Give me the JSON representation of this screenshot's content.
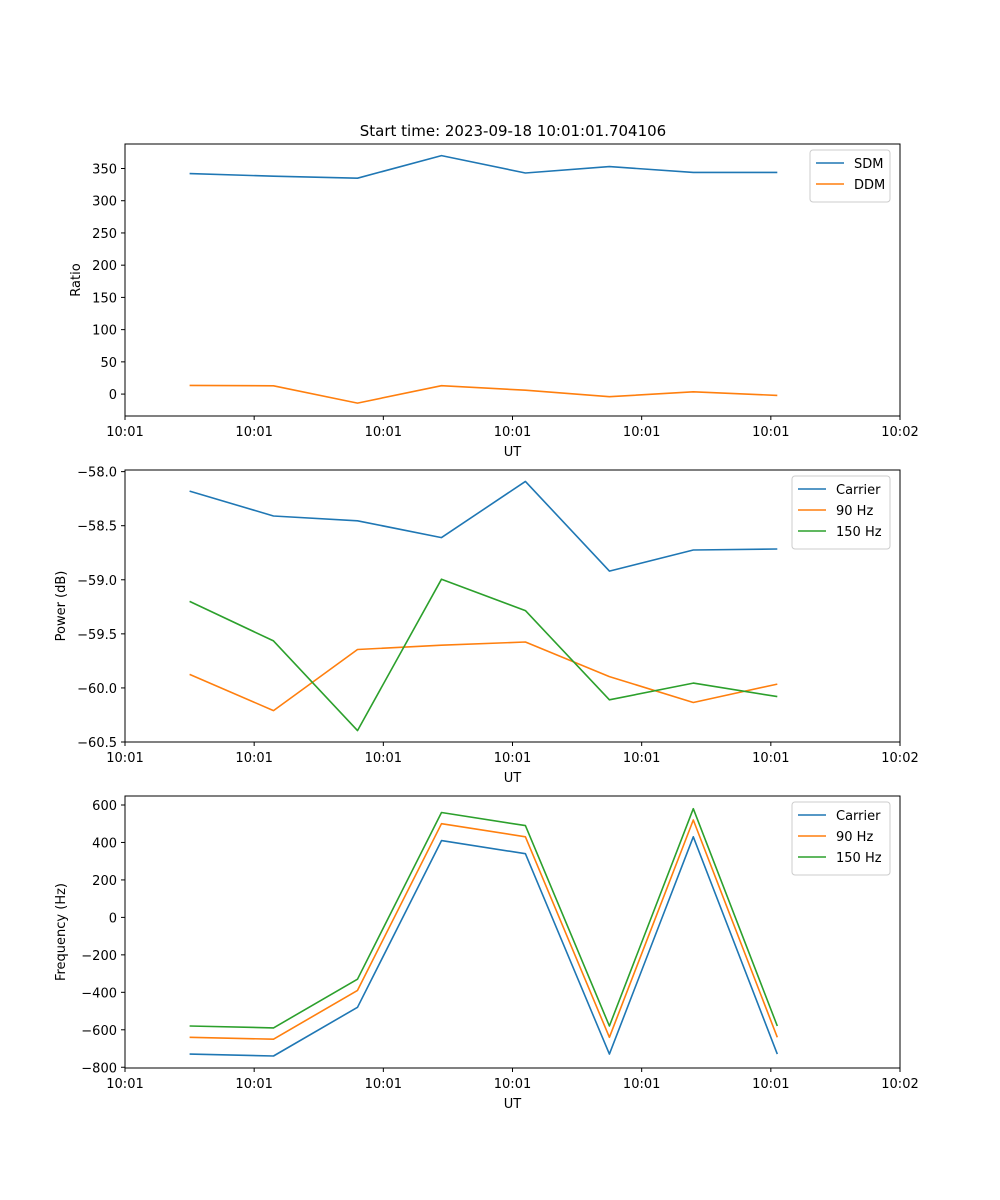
{
  "figure_title": "Start time: 2023-09-18 10:01:01.704106",
  "chart_data": [
    {
      "type": "line",
      "title": "Start time: 2023-09-18 10:01:01.704106",
      "xlabel": "UT",
      "ylabel": "Ratio",
      "x": [
        0.5,
        1.15,
        1.8,
        2.45,
        3.1,
        3.75,
        4.4,
        5.05
      ],
      "xlim": [
        0,
        6
      ],
      "x_ticks": [
        0,
        1,
        2,
        3,
        4,
        5,
        6
      ],
      "x_tick_labels": [
        "10:01",
        "10:01",
        "10:01",
        "10:01",
        "10:01",
        "10:01",
        "10:02"
      ],
      "ylim": [
        -34,
        388
      ],
      "y_ticks": [
        0,
        50,
        100,
        150,
        200,
        250,
        300,
        350
      ],
      "y_tick_labels": [
        "0",
        "50",
        "100",
        "150",
        "200",
        "250",
        "300",
        "350"
      ],
      "legend_position": "top-right",
      "series": [
        {
          "name": "SDM",
          "color": "#1f77b4",
          "values": [
            342,
            338,
            335,
            370,
            343,
            353,
            344,
            344
          ]
        },
        {
          "name": "DDM",
          "color": "#ff7f0e",
          "values": [
            13.5,
            12.8,
            -14,
            13,
            6,
            -4,
            3.5,
            -2
          ]
        }
      ]
    },
    {
      "type": "line",
      "title": "",
      "xlabel": "UT",
      "ylabel": "Power (dB)",
      "x": [
        0.5,
        1.15,
        1.8,
        2.45,
        3.1,
        3.75,
        4.4,
        5.05
      ],
      "xlim": [
        0,
        6
      ],
      "x_ticks": [
        0,
        1,
        2,
        3,
        4,
        5,
        6
      ],
      "x_tick_labels": [
        "10:01",
        "10:01",
        "10:01",
        "10:01",
        "10:01",
        "10:01",
        "10:02"
      ],
      "ylim": [
        -60.5,
        -57.985
      ],
      "y_ticks": [
        -58.0,
        -58.5,
        -59.0,
        -59.5,
        -60.0,
        -60.5
      ],
      "y_tick_labels": [
        "−58.0",
        "−58.5",
        "−59.0",
        "−59.5",
        "−60.0",
        "−60.5"
      ],
      "legend_position": "top-right",
      "series": [
        {
          "name": "Carrier",
          "color": "#1f77b4",
          "values": [
            -58.18,
            -58.41,
            -58.455,
            -58.61,
            -58.09,
            -58.92,
            -58.725,
            -58.715
          ]
        },
        {
          "name": "90 Hz",
          "color": "#ff7f0e",
          "values": [
            -59.875,
            -60.21,
            -59.645,
            -59.605,
            -59.575,
            -59.895,
            -60.135,
            -59.965
          ]
        },
        {
          "name": "150 Hz",
          "color": "#2ca02c",
          "values": [
            -59.2,
            -59.565,
            -60.395,
            -58.995,
            -59.285,
            -60.11,
            -59.955,
            -60.08
          ]
        }
      ]
    },
    {
      "type": "line",
      "title": "",
      "xlabel": "UT",
      "ylabel": "Frequency (Hz)",
      "x": [
        0.5,
        1.15,
        1.8,
        2.45,
        3.1,
        3.75,
        4.4,
        5.05
      ],
      "xlim": [
        0,
        6
      ],
      "x_ticks": [
        0,
        1,
        2,
        3,
        4,
        5,
        6
      ],
      "x_tick_labels": [
        "10:01",
        "10:01",
        "10:01",
        "10:01",
        "10:01",
        "10:01",
        "10:02"
      ],
      "ylim": [
        -804,
        648
      ],
      "y_ticks": [
        -800,
        -600,
        -400,
        -200,
        0,
        200,
        400,
        600
      ],
      "y_tick_labels": [
        "−800",
        "−600",
        "−400",
        "−200",
        "0",
        "200",
        "400",
        "600"
      ],
      "legend_position": "top-right",
      "series": [
        {
          "name": "Carrier",
          "color": "#1f77b4",
          "values": [
            -730,
            -740,
            -480,
            410,
            340,
            -730,
            430,
            -730
          ]
        },
        {
          "name": "90 Hz",
          "color": "#ff7f0e",
          "values": [
            -640,
            -650,
            -390,
            500,
            430,
            -640,
            520,
            -640
          ]
        },
        {
          "name": "150 Hz",
          "color": "#2ca02c",
          "values": [
            -580,
            -590,
            -330,
            560,
            490,
            -580,
            580,
            -580
          ]
        }
      ]
    }
  ]
}
